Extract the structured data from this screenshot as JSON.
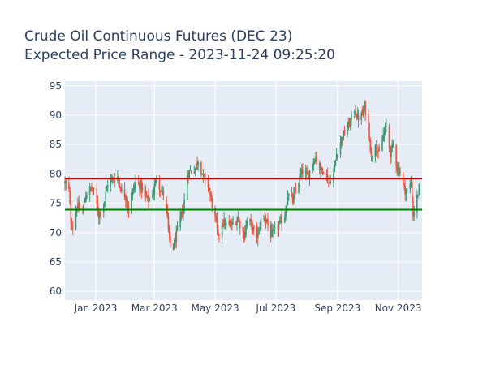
{
  "chart_data": {
    "type": "candlestick",
    "title": "Crude Oil Continuous Futures (DEC 23)",
    "subtitle": "Expected Price Range - 2023-11-24 09:25:20",
    "xlabel": "",
    "ylabel": "",
    "xlim": [
      "2022-12-01",
      "2023-11-25"
    ],
    "ylim": [
      58.5,
      95.8
    ],
    "y_ticks": [
      60,
      65,
      70,
      75,
      80,
      85,
      90,
      95
    ],
    "x_ticks": [
      {
        "date": "2023-01-01",
        "label": "Jan 2023"
      },
      {
        "date": "2023-03-01",
        "label": "Mar 2023"
      },
      {
        "date": "2023-05-01",
        "label": "May 2023"
      },
      {
        "date": "2023-07-01",
        "label": "Jul 2023"
      },
      {
        "date": "2023-09-01",
        "label": "Sep 2023"
      },
      {
        "date": "2023-11-01",
        "label": "Nov 2023"
      }
    ],
    "grid": true,
    "background_color": "#e5ecf6",
    "increasing_color": "#3d9970",
    "decreasing_color": "#ef553b",
    "close_series": [
      [
        "2022-12-01",
        78.5
      ],
      [
        "2022-12-05",
        77.0
      ],
      [
        "2022-12-07",
        72.0
      ],
      [
        "2022-12-09",
        71.0
      ],
      [
        "2022-12-13",
        74.5
      ],
      [
        "2022-12-15",
        74.0
      ],
      [
        "2022-12-19",
        73.5
      ],
      [
        "2022-12-22",
        76.5
      ],
      [
        "2022-12-27",
        77.5
      ],
      [
        "2022-12-30",
        77.0
      ],
      [
        "2023-01-04",
        73.0
      ],
      [
        "2023-01-06",
        74.0
      ],
      [
        "2023-01-10",
        75.5
      ],
      [
        "2023-01-13",
        78.5
      ],
      [
        "2023-01-18",
        79.0
      ],
      [
        "2023-01-23",
        79.5
      ],
      [
        "2023-01-27",
        77.0
      ],
      [
        "2023-02-01",
        76.0
      ],
      [
        "2023-02-03",
        73.5
      ],
      [
        "2023-02-07",
        77.0
      ],
      [
        "2023-02-10",
        78.5
      ],
      [
        "2023-02-15",
        78.0
      ],
      [
        "2023-02-20",
        76.0
      ],
      [
        "2023-02-23",
        75.5
      ],
      [
        "2023-02-28",
        77.0
      ],
      [
        "2023-03-03",
        79.5
      ],
      [
        "2023-03-07",
        77.5
      ],
      [
        "2023-03-10",
        76.5
      ],
      [
        "2023-03-13",
        74.0
      ],
      [
        "2023-03-16",
        68.5
      ],
      [
        "2023-03-20",
        67.5
      ],
      [
        "2023-03-23",
        69.5
      ],
      [
        "2023-03-27",
        72.5
      ],
      [
        "2023-03-30",
        74.0
      ],
      [
        "2023-04-03",
        80.0
      ],
      [
        "2023-04-06",
        80.5
      ],
      [
        "2023-04-11",
        81.0
      ],
      [
        "2023-04-14",
        82.5
      ],
      [
        "2023-04-19",
        79.5
      ],
      [
        "2023-04-24",
        78.0
      ],
      [
        "2023-04-27",
        75.5
      ],
      [
        "2023-05-02",
        71.5
      ],
      [
        "2023-05-04",
        69.0
      ],
      [
        "2023-05-08",
        72.0
      ],
      [
        "2023-05-11",
        71.5
      ],
      [
        "2023-05-16",
        71.0
      ],
      [
        "2023-05-19",
        71.5
      ],
      [
        "2023-05-24",
        72.5
      ],
      [
        "2023-05-30",
        69.5
      ],
      [
        "2023-06-02",
        72.0
      ],
      [
        "2023-06-06",
        71.5
      ],
      [
        "2023-06-09",
        70.0
      ],
      [
        "2023-06-13",
        69.5
      ],
      [
        "2023-06-16",
        72.0
      ],
      [
        "2023-06-21",
        72.5
      ],
      [
        "2023-06-26",
        69.5
      ],
      [
        "2023-06-29",
        70.0
      ],
      [
        "2023-07-05",
        71.5
      ],
      [
        "2023-07-10",
        73.0
      ],
      [
        "2023-07-13",
        76.5
      ],
      [
        "2023-07-18",
        75.5
      ],
      [
        "2023-07-21",
        77.0
      ],
      [
        "2023-07-25",
        79.5
      ],
      [
        "2023-07-28",
        80.5
      ],
      [
        "2023-08-02",
        79.5
      ],
      [
        "2023-08-07",
        82.0
      ],
      [
        "2023-08-10",
        83.0
      ],
      [
        "2023-08-15",
        80.5
      ],
      [
        "2023-08-18",
        81.0
      ],
      [
        "2023-08-23",
        78.5
      ],
      [
        "2023-08-28",
        80.0
      ],
      [
        "2023-08-31",
        83.5
      ],
      [
        "2023-09-05",
        86.0
      ],
      [
        "2023-09-08",
        87.0
      ],
      [
        "2023-09-13",
        88.5
      ],
      [
        "2023-09-18",
        91.0
      ],
      [
        "2023-09-21",
        89.5
      ],
      [
        "2023-09-26",
        90.0
      ],
      [
        "2023-09-28",
        91.5
      ],
      [
        "2023-10-02",
        88.5
      ],
      [
        "2023-10-05",
        82.5
      ],
      [
        "2023-10-09",
        85.5
      ],
      [
        "2023-10-12",
        83.0
      ],
      [
        "2023-10-17",
        86.5
      ],
      [
        "2023-10-20",
        88.0
      ],
      [
        "2023-10-24",
        83.5
      ],
      [
        "2023-10-27",
        85.0
      ],
      [
        "2023-10-31",
        81.0
      ],
      [
        "2023-11-03",
        80.5
      ],
      [
        "2023-11-07",
        77.5
      ],
      [
        "2023-11-10",
        77.0
      ],
      [
        "2023-11-14",
        78.5
      ],
      [
        "2023-11-16",
        73.0
      ],
      [
        "2023-11-20",
        76.0
      ],
      [
        "2023-11-22",
        77.5
      ]
    ],
    "reference_lines": [
      {
        "value": 79.2,
        "color": "#cc0000"
      },
      {
        "value": 73.9,
        "color": "#008000"
      }
    ]
  }
}
